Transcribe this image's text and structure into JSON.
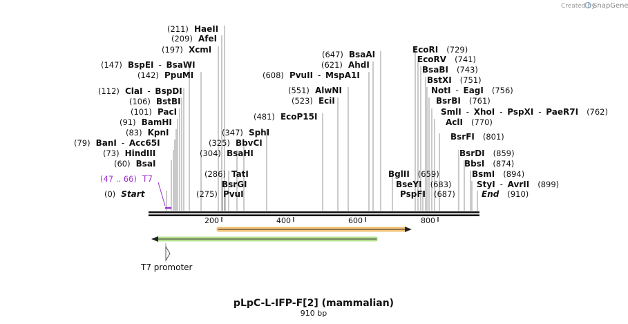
{
  "credit": {
    "prefix": "Created by",
    "brand": "SnapGene"
  },
  "map": {
    "title": "pLpC-L-IFP-F[2] (mammalian)",
    "length_label": "910 bp",
    "length": 910,
    "ticks": [
      "200",
      "400",
      "600",
      "800"
    ],
    "tick_values": [
      200,
      400,
      600,
      800
    ],
    "primer": {
      "label": "T7",
      "range": "(47 .. 66)",
      "color": "#9b30d0",
      "start": 47,
      "end": 66
    },
    "features": [
      {
        "name": "T7 promoter",
        "start": 47,
        "end": 66,
        "direction": "forward"
      },
      {
        "name": "orange-feature",
        "start": 300,
        "end": 750,
        "direction": "forward",
        "color": "#f0a12c"
      },
      {
        "name": "green-feature",
        "start": 20,
        "end": 630,
        "direction": "reverse",
        "color": "#79c843"
      }
    ],
    "sites": [
      {
        "pos": "(0)",
        "names": [
          "Start"
        ],
        "italic": true
      },
      {
        "pos": "(60)",
        "names": [
          "BsaI"
        ]
      },
      {
        "pos": "(73)",
        "names": [
          "HindIII"
        ]
      },
      {
        "pos": "(79)",
        "names": [
          "BanI",
          "Acc65I"
        ]
      },
      {
        "pos": "(83)",
        "names": [
          "KpnI"
        ]
      },
      {
        "pos": "(91)",
        "names": [
          "BamHI"
        ]
      },
      {
        "pos": "(101)",
        "names": [
          "PacI"
        ]
      },
      {
        "pos": "(106)",
        "names": [
          "BstBI"
        ]
      },
      {
        "pos": "(112)",
        "names": [
          "ClaI",
          "BspDI"
        ]
      },
      {
        "pos": "(142)",
        "names": [
          "PpuMI"
        ]
      },
      {
        "pos": "(147)",
        "names": [
          "BspEI",
          "BsaWI"
        ]
      },
      {
        "pos": "(197)",
        "names": [
          "XcmI"
        ]
      },
      {
        "pos": "(209)",
        "names": [
          "AfeI"
        ]
      },
      {
        "pos": "(211)",
        "names": [
          "HaeII"
        ]
      },
      {
        "pos": "(275)",
        "names": [
          "PvuI"
        ]
      },
      {
        "pos": "",
        "names": [
          "BsrGI"
        ]
      },
      {
        "pos": "(286)",
        "names": [
          "TatI"
        ]
      },
      {
        "pos": "(304)",
        "names": [
          "BsaHI"
        ]
      },
      {
        "pos": "(325)",
        "names": [
          "BbvCI"
        ]
      },
      {
        "pos": "(347)",
        "names": [
          "SphI"
        ]
      },
      {
        "pos": "(481)",
        "names": [
          "EcoP15I"
        ]
      },
      {
        "pos": "(523)",
        "names": [
          "EciI"
        ]
      },
      {
        "pos": "(551)",
        "names": [
          "AlwNI"
        ]
      },
      {
        "pos": "(608)",
        "names": [
          "PvuII",
          "MspA1I"
        ]
      },
      {
        "pos": "(621)",
        "names": [
          "AhdI"
        ]
      },
      {
        "pos": "(647)",
        "names": [
          "BsaAI"
        ]
      },
      {
        "pos": "(659)",
        "names": [
          "BglII"
        ]
      },
      {
        "pos": "(683)",
        "names": [
          "BseYI"
        ]
      },
      {
        "pos": "(687)",
        "names": [
          "PspFI"
        ]
      },
      {
        "pos": "(729)",
        "names": [
          "EcoRI"
        ]
      },
      {
        "pos": "(741)",
        "names": [
          "EcoRV"
        ]
      },
      {
        "pos": "(743)",
        "names": [
          "BsaBI"
        ]
      },
      {
        "pos": "(751)",
        "names": [
          "BstXI"
        ]
      },
      {
        "pos": "(756)",
        "names": [
          "NotI",
          "EagI"
        ]
      },
      {
        "pos": "(761)",
        "names": [
          "BsrBI"
        ]
      },
      {
        "pos": "(762)",
        "names": [
          "SmlI",
          "XhoI",
          "PspXI",
          "PaeR7I"
        ]
      },
      {
        "pos": "(770)",
        "names": [
          "AclI"
        ]
      },
      {
        "pos": "(801)",
        "names": [
          "BsrFI"
        ]
      },
      {
        "pos": "(859)",
        "names": [
          "BsrDI"
        ]
      },
      {
        "pos": "(874)",
        "names": [
          "BbsI"
        ]
      },
      {
        "pos": "(894)",
        "names": [
          "BsmI"
        ]
      },
      {
        "pos": "(899)",
        "names": [
          "StyI",
          "AvrII"
        ]
      },
      {
        "pos": "(910)",
        "names": [
          "End"
        ],
        "italic": true
      }
    ]
  }
}
